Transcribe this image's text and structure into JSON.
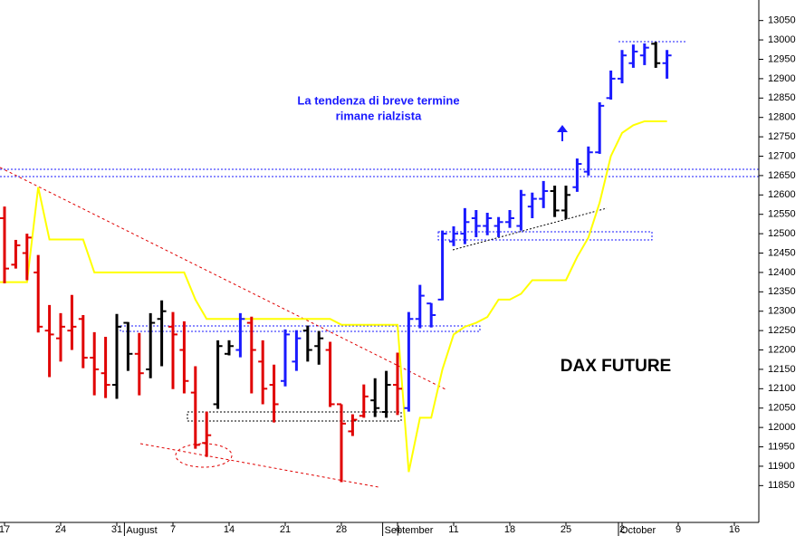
{
  "chart_data": {
    "type": "ohlc",
    "title": "DAX FUTURE",
    "annotation": [
      "La tendenza di breve termine",
      "rimane rialzista"
    ],
    "categories": [
      "17",
      null,
      null,
      null,
      null,
      "24",
      null,
      null,
      null,
      null,
      "31",
      null,
      null,
      null,
      null,
      "7",
      null,
      null,
      null,
      null,
      "14",
      null,
      null,
      null,
      null,
      "21",
      null,
      null,
      null,
      null,
      "28",
      null,
      null,
      null,
      null,
      "4",
      null,
      null,
      null,
      null,
      "11",
      null,
      null,
      null,
      null,
      "18",
      null,
      null,
      null,
      null,
      "25",
      null,
      null,
      null,
      null,
      "2",
      null,
      null,
      null,
      null,
      "9",
      null,
      null,
      null,
      null,
      "16",
      null,
      null
    ],
    "category_months": [
      null,
      null,
      null,
      null,
      null,
      null,
      null,
      null,
      null,
      null,
      null,
      "August",
      null,
      null,
      null,
      null,
      null,
      null,
      null,
      null,
      null,
      null,
      null,
      null,
      null,
      null,
      null,
      null,
      null,
      null,
      null,
      null,
      null,
      null,
      "September",
      null,
      null,
      null,
      null,
      null,
      null,
      null,
      null,
      null,
      null,
      null,
      null,
      null,
      null,
      null,
      null,
      null,
      null,
      null,
      null,
      "October",
      null,
      null,
      null,
      null,
      null,
      null,
      null,
      null,
      null,
      null,
      null,
      null
    ],
    "open": [
      12540,
      12420,
      12450,
      12400,
      12250,
      12230,
      12250,
      12280,
      12180,
      12140,
      12110,
      12270,
      12190,
      12150,
      12280,
      12260,
      12200,
      12090,
      11960,
      12060,
      12190,
      12200,
      12270,
      12170,
      12110,
      12120,
      12170,
      12250,
      12210,
      12200,
      12060,
      11990,
      12030,
      12070,
      12040,
      12110,
      12050,
      12280,
      12320,
      12330,
      12480,
      12500,
      12540,
      12520,
      12520,
      12530,
      12520,
      12570,
      12590,
      12610,
      12560,
      12620,
      12660,
      12710,
      12850,
      12900,
      12940,
      12960,
      12990,
      12940,
      null,
      null,
      null,
      null,
      null,
      null,
      null,
      null
    ],
    "high": [
      12570,
      12484,
      12500,
      12445,
      12316,
      12295,
      12342,
      12290,
      12246,
      12234,
      12293,
      12272,
      12244,
      12295,
      12328,
      12298,
      12274,
      12158,
      12041,
      12225,
      12225,
      12295,
      12286,
      12225,
      12162,
      12253,
      12251,
      12263,
      12249,
      12221,
      12060,
      12034,
      12111,
      12127,
      12146,
      12193,
      12298,
      12368,
      12321,
      12508,
      12519,
      12566,
      12561,
      12554,
      12543,
      12561,
      12613,
      12606,
      12636,
      12624,
      12624,
      12694,
      12725,
      12839,
      12921,
      12974,
      12988,
      12991,
      12995,
      12974,
      null,
      null,
      null,
      null,
      null,
      null,
      null,
      null
    ],
    "low": [
      12372,
      12410,
      12380,
      12245,
      12130,
      12170,
      12200,
      12153,
      12083,
      12076,
      12074,
      12146,
      12083,
      12127,
      12158,
      12099,
      12088,
      11945,
      11924,
      12048,
      12186,
      12181,
      12088,
      12060,
      12013,
      12106,
      12146,
      12170,
      12162,
      12053,
      11859,
      11978,
      12025,
      12027,
      12025,
      12032,
      12041,
      12256,
      12258,
      12328,
      12468,
      12473,
      12491,
      12496,
      12491,
      12515,
      12508,
      12540,
      12566,
      12543,
      12538,
      12608,
      12650,
      12706,
      12846,
      12888,
      12928,
      12935,
      12928,
      12900,
      null,
      null,
      null,
      null,
      null,
      null,
      null,
      null
    ],
    "close": [
      12410,
      12470,
      12490,
      12260,
      12240,
      12260,
      12260,
      12180,
      12150,
      12110,
      12260,
      12190,
      12140,
      12270,
      12300,
      12240,
      12120,
      11955,
      11980,
      12210,
      12210,
      12280,
      12200,
      12100,
      12060,
      12240,
      12230,
      12200,
      12230,
      12060,
      12010,
      12020,
      12080,
      12050,
      12110,
      12100,
      12280,
      12340,
      12290,
      12500,
      12500,
      12530,
      12520,
      12540,
      12530,
      12540,
      12600,
      12590,
      12610,
      12560,
      12600,
      12680,
      12710,
      12830,
      12900,
      12960,
      12970,
      12980,
      12940,
      12960,
      null,
      null,
      null,
      null,
      null,
      null,
      null,
      null
    ],
    "colors": [
      "#e00000",
      "#e00000",
      "#e00000",
      "#e00000",
      "#e00000",
      "#e00000",
      "#e00000",
      "#e00000",
      "#e00000",
      "#e00000",
      "#000000",
      "#000000",
      "#e00000",
      "#000000",
      "#000000",
      "#e00000",
      "#e00000",
      "#e00000",
      "#e00000",
      "#000000",
      "#000000",
      "#1a1aff",
      "#e00000",
      "#e00000",
      "#e00000",
      "#1a1aff",
      "#1a1aff",
      "#000000",
      "#000000",
      "#e00000",
      "#e00000",
      "#e00000",
      "#e00000",
      "#000000",
      "#000000",
      "#e00000",
      "#1a1aff",
      "#1a1aff",
      "#1a1aff",
      "#1a1aff",
      "#1a1aff",
      "#1a1aff",
      "#1a1aff",
      "#1a1aff",
      "#1a1aff",
      "#1a1aff",
      "#1a1aff",
      "#1a1aff",
      "#1a1aff",
      "#000000",
      "#000000",
      "#1a1aff",
      "#1a1aff",
      "#1a1aff",
      "#1a1aff",
      "#1a1aff",
      "#1a1aff",
      "#1a1aff",
      "#000000",
      "#1a1aff",
      null,
      null,
      null,
      null,
      null,
      null,
      null,
      null
    ],
    "line": {
      "color": "#ffff00",
      "values": [
        12375,
        12375,
        12375,
        12620,
        12485,
        12485,
        12485,
        12485,
        12400,
        12400,
        12400,
        12400,
        12400,
        12400,
        12400,
        12400,
        12400,
        12330,
        12280,
        12280,
        12280,
        12280,
        12280,
        12280,
        12280,
        12280,
        12280,
        12280,
        12280,
        12280,
        12265,
        12265,
        12265,
        12265,
        12265,
        12265,
        11885,
        12025,
        12025,
        12150,
        12240,
        12260,
        12270,
        12285,
        12330,
        12330,
        12345,
        12380,
        12380,
        12380,
        12380,
        12440,
        12490,
        12580,
        12700,
        12760,
        12780,
        12790,
        12790,
        12790,
        null,
        null,
        null,
        null,
        null,
        null,
        null,
        null
      ]
    },
    "ylim": [
      11755,
      13103
    ],
    "yticks": [
      11850,
      11900,
      11950,
      12000,
      12050,
      12100,
      12150,
      12200,
      12250,
      12300,
      12350,
      12400,
      12450,
      12500,
      12550,
      12600,
      12650,
      12700,
      12750,
      12800,
      12850,
      12900,
      12950,
      13000,
      13050
    ]
  }
}
